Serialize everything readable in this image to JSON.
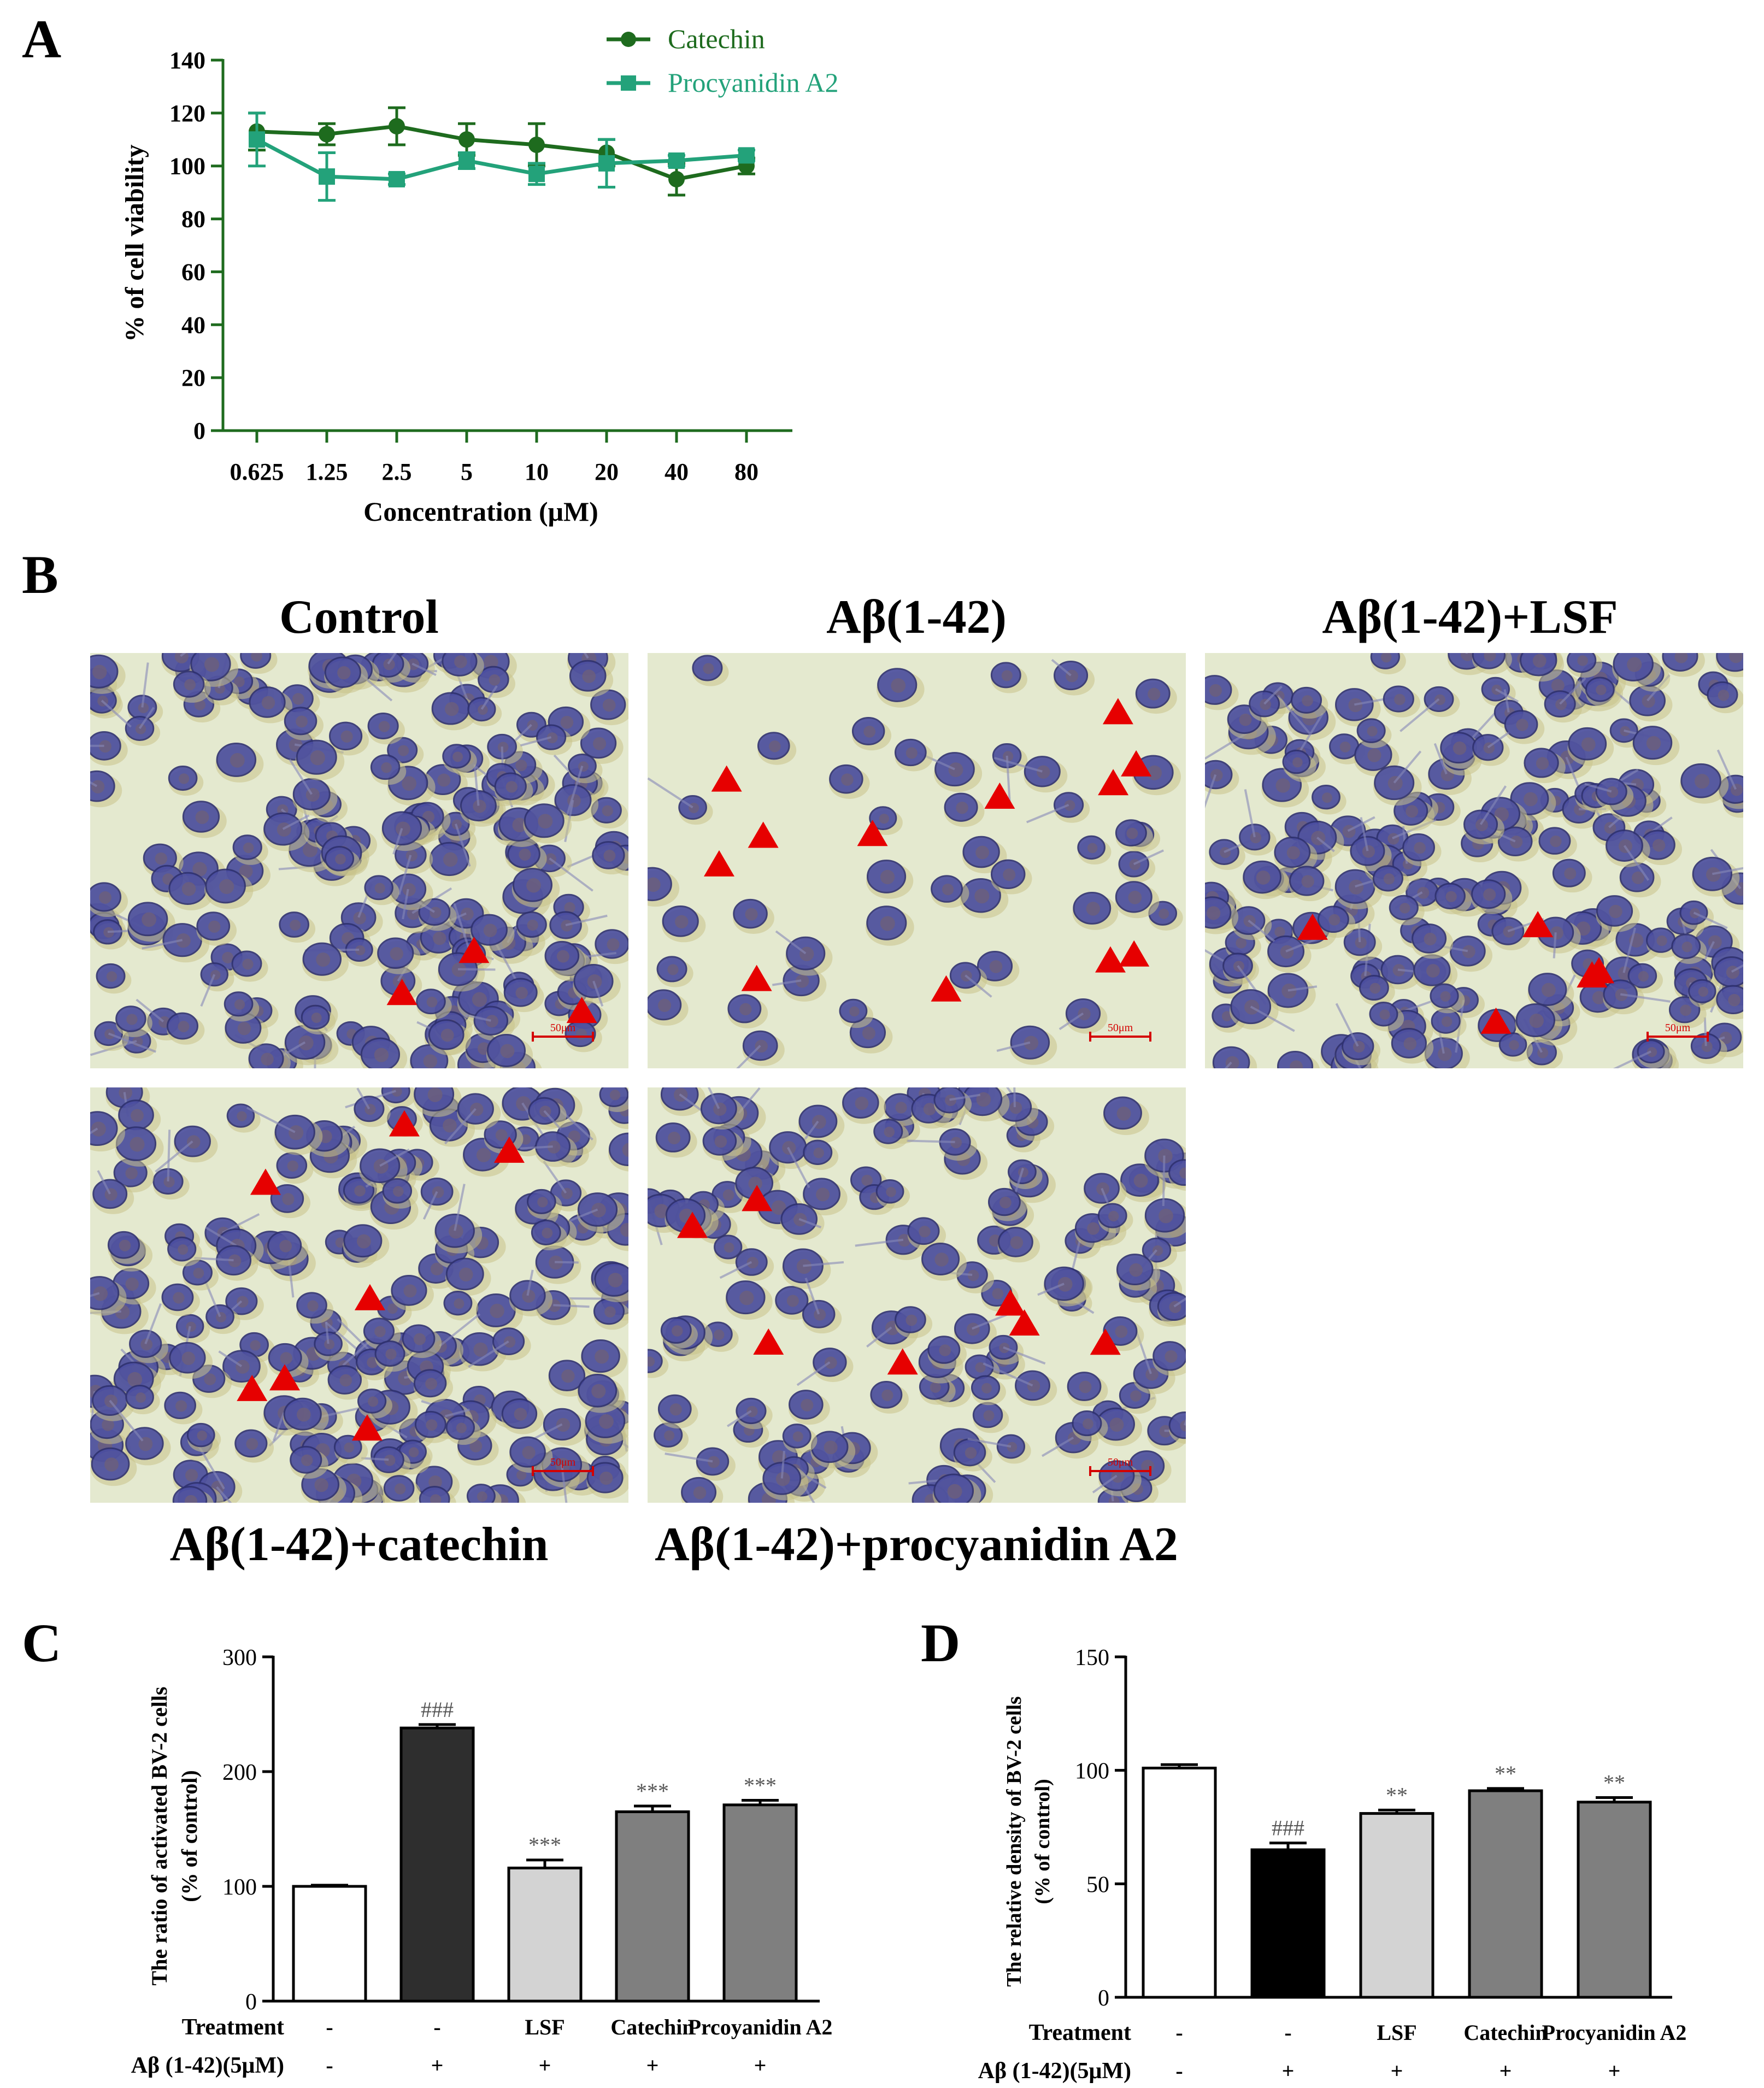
{
  "panel_labels": {
    "a": "A",
    "b": "B",
    "c": "C",
    "d": "D"
  },
  "micrographs": {
    "scale_bar_text": "50μm",
    "marker": "red-triangle-arrowhead",
    "panels": [
      {
        "id": "control",
        "title": "Control",
        "density": "high",
        "activated_marked": 3
      },
      {
        "id": "abeta",
        "title": "Aβ(1-42)",
        "density": "low",
        "activated_marked": 12
      },
      {
        "id": "abeta-lsf",
        "title": "Aβ(1-42)+LSF",
        "density": "high",
        "activated_marked": 5
      },
      {
        "id": "abeta-catechin",
        "title": "Aβ(1-42)+catechin",
        "density": "high",
        "activated_marked": 7
      },
      {
        "id": "abeta-procyanidin",
        "title": "Aβ(1-42)+procyanidin A2",
        "density": "medium",
        "activated_marked": 7
      }
    ]
  },
  "colors": {
    "catechin": "#1e6b1e",
    "procyanidin": "#23a27a",
    "bar_white": "#ffffff",
    "bar_dark_c": "#2e2e2e",
    "bar_black_d": "#000000",
    "bar_light": "#d3d3d3",
    "bar_mid": "#7f7f7f",
    "marker": "#e60000",
    "micrograph_bg": "#e4e9cf",
    "cell": "#4a4da0"
  },
  "chart_data": [
    {
      "id": "A",
      "type": "line",
      "x": [
        "0.625",
        "1.25",
        "2.5",
        "5",
        "10",
        "20",
        "40",
        "80"
      ],
      "xlabel": "Concentration (μM)",
      "ylabel": "% of cell viability",
      "ylim": [
        0,
        140
      ],
      "yticks": [
        0,
        20,
        40,
        60,
        80,
        100,
        120,
        140
      ],
      "legend_position": "top-right",
      "series": [
        {
          "name": "Catechin",
          "marker": "circle",
          "values": [
            113,
            112,
            115,
            110,
            108,
            105,
            95,
            100
          ],
          "errors": [
            7,
            4,
            7,
            6,
            8,
            5,
            6,
            3
          ]
        },
        {
          "name": "Procyanidin A2",
          "marker": "square",
          "values": [
            110,
            96,
            95,
            102,
            97,
            101,
            102,
            104
          ],
          "errors": [
            10,
            9,
            2,
            3,
            4,
            9,
            2,
            2
          ]
        }
      ]
    },
    {
      "id": "C",
      "type": "bar",
      "ylabel_line1": "The ratio of activated BV-2 cells",
      "ylabel_line2": "(% of control)",
      "ylim": [
        0,
        300
      ],
      "yticks": [
        0,
        100,
        200,
        300
      ],
      "categories": [
        "-",
        "-",
        "LSF",
        "Catechin",
        "Prcoyanidin A2"
      ],
      "abeta": [
        "-",
        "+",
        "+",
        "+",
        "+"
      ],
      "row_labels": {
        "treatment": "Treatment",
        "abeta": "Aβ (1-42)(5μM)"
      },
      "values": [
        100,
        238,
        116,
        165,
        171
      ],
      "errors": [
        1,
        3,
        7,
        5,
        4
      ],
      "annotations": [
        "",
        "###",
        "***",
        "***",
        "***"
      ],
      "fills": [
        "#ffffff",
        "#2e2e2e",
        "#d3d3d3",
        "#7f7f7f",
        "#7f7f7f"
      ]
    },
    {
      "id": "D",
      "type": "bar",
      "ylabel_line1": "The relative density of BV-2 cells",
      "ylabel_line2": "(% of control)",
      "ylim": [
        0,
        150
      ],
      "yticks": [
        0,
        50,
        100,
        150
      ],
      "categories": [
        "-",
        "-",
        "LSF",
        "Catechin",
        "Procyanidin A2"
      ],
      "abeta": [
        "-",
        "+",
        "+",
        "+",
        "+"
      ],
      "row_labels": {
        "treatment": "Treatment",
        "abeta": "Aβ (1-42)(5μM)"
      },
      "values": [
        101,
        65,
        81,
        91,
        86
      ],
      "errors": [
        1.5,
        3,
        1.5,
        1,
        2
      ],
      "annotations": [
        "",
        "###",
        "**",
        "**",
        "**"
      ],
      "fills": [
        "#ffffff",
        "#000000",
        "#d3d3d3",
        "#7f7f7f",
        "#7f7f7f"
      ]
    }
  ]
}
